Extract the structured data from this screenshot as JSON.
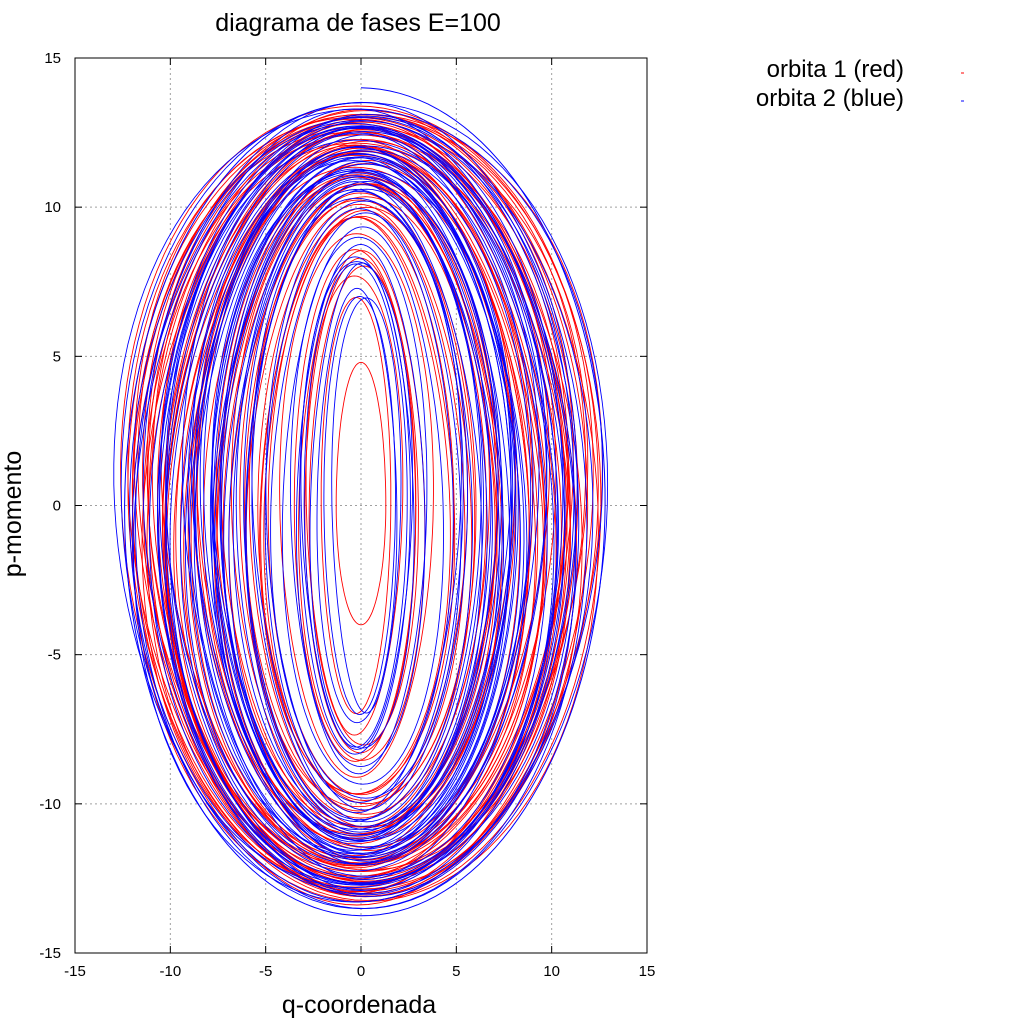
{
  "chart_data": {
    "type": "line",
    "title": "diagrama de fases E=100",
    "xlabel": "q-coordenada",
    "ylabel": "p-momento",
    "xlim": [
      -15,
      15
    ],
    "ylim": [
      -15,
      15
    ],
    "xticks": [
      -15,
      -10,
      -5,
      0,
      5,
      10,
      15
    ],
    "yticks": [
      -15,
      -10,
      -5,
      0,
      5,
      10,
      15
    ],
    "grid": true,
    "legend_position": "top-right, outside plot",
    "series": [
      {
        "name": "orbita 1 (red)",
        "color": "#ff0000",
        "q_range": [
          -12.4,
          12.1
        ],
        "p_range": [
          -13.4,
          13.5
        ],
        "inner_q_range": [
          -1.3,
          1.3
        ],
        "inner_p_range": [
          -4.0,
          4.8
        ]
      },
      {
        "name": "orbita 2 (blue)",
        "color": "#0000ff",
        "q_range": [
          -12.0,
          13.0
        ],
        "p_range": [
          -13.6,
          14.0
        ],
        "start_point": [
          0,
          14.0
        ]
      }
    ]
  }
}
